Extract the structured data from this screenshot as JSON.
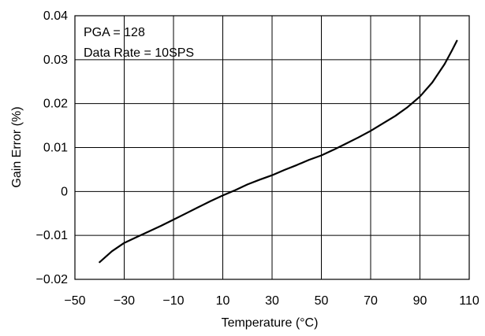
{
  "chart_data": {
    "type": "line",
    "title": "",
    "xlabel": "Temperature (°C)",
    "ylabel": "Gain Error (%)",
    "xlim": [
      -50,
      110
    ],
    "ylim": [
      -0.02,
      0.04
    ],
    "x_ticks": [
      -50,
      -30,
      -10,
      10,
      30,
      50,
      70,
      90,
      110
    ],
    "x_tick_labels": [
      "−50",
      "−30",
      "−10",
      "10",
      "30",
      "50",
      "70",
      "90",
      "110"
    ],
    "y_ticks": [
      -0.02,
      -0.01,
      0,
      0.01,
      0.02,
      0.03,
      0.04
    ],
    "y_tick_labels": [
      "−0.02",
      "−0.01",
      "0",
      "0.01",
      "0.02",
      "0.03",
      "0.04"
    ],
    "grid": true,
    "annotations": [
      "PGA = 128",
      "Data Rate = 10SPS"
    ],
    "series": [
      {
        "color": "#000000",
        "x": [
          -40,
          -35,
          -30,
          -25,
          -20,
          -15,
          -10,
          -5,
          0,
          5,
          10,
          15,
          20,
          25,
          30,
          35,
          40,
          45,
          50,
          55,
          60,
          65,
          70,
          75,
          80,
          85,
          90,
          95,
          100,
          103,
          105
        ],
        "y": [
          -0.0161,
          -0.0136,
          -0.0117,
          -0.0104,
          -0.0091,
          -0.0078,
          -0.0064,
          -0.005,
          -0.0036,
          -0.0022,
          -0.0009,
          0.0003,
          0.0016,
          0.0027,
          0.0037,
          0.0049,
          0.006,
          0.0072,
          0.0082,
          0.0095,
          0.0109,
          0.0123,
          0.0138,
          0.0155,
          0.0172,
          0.0192,
          0.0216,
          0.0248,
          0.029,
          0.0321,
          0.0343
        ]
      }
    ]
  }
}
